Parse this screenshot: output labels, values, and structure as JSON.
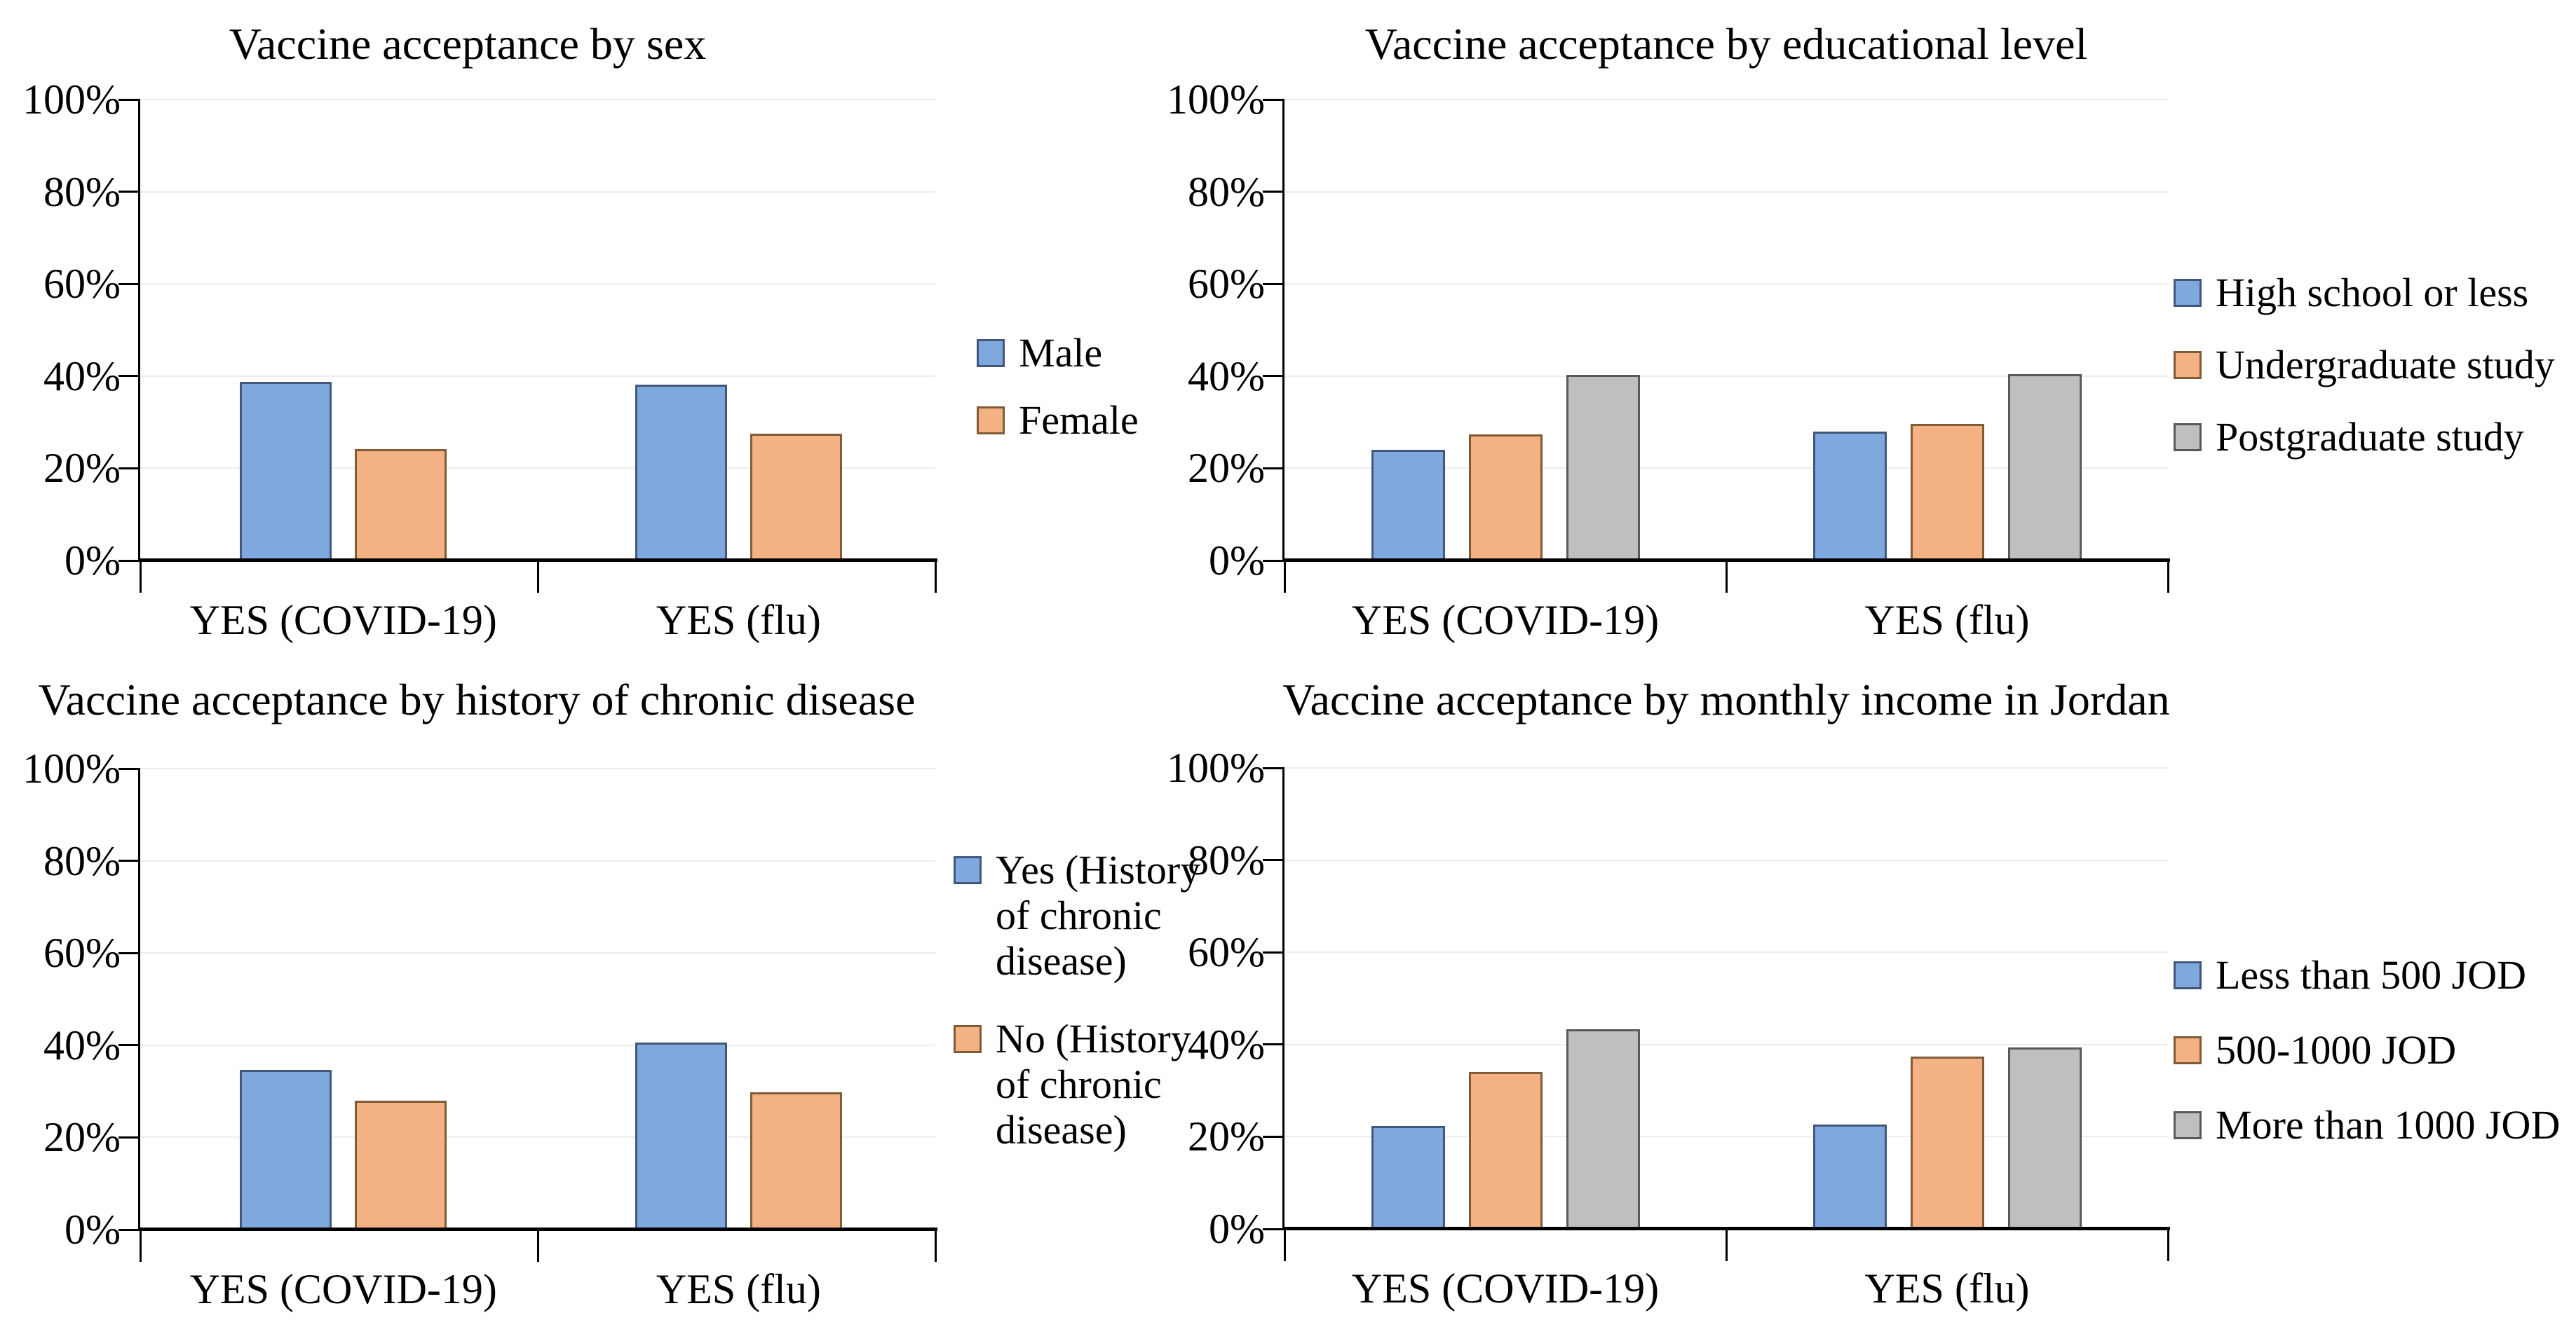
{
  "figure": {
    "background": "#ffffff",
    "text_color": "#000000"
  },
  "palette": {
    "blue": "#7FA9DE",
    "blue_border": "#41587B",
    "orange": "#F4B183",
    "orange_border": "#7F5B36",
    "gray": "#BFBFBF",
    "gray_border": "#595959",
    "axis": "#000000",
    "gridline": "#EDEDED"
  },
  "chart_data": [
    {
      "type": "bar",
      "title": "Vaccine acceptance by sex",
      "categories": [
        "YES (COVID-19)",
        "YES (flu)"
      ],
      "series": [
        {
          "name": "Male",
          "color": "blue",
          "values": [
            38.7,
            38.1
          ]
        },
        {
          "name": "Female",
          "color": "orange",
          "values": [
            24.1,
            27.5
          ]
        }
      ],
      "xlabel": "",
      "ylabel": "",
      "ylim": [
        0,
        100
      ],
      "yticks": [
        "0%",
        "20%",
        "40%",
        "60%",
        "80%",
        "100%"
      ],
      "grid": true,
      "legend_position": "right"
    },
    {
      "type": "bar",
      "title": "Vaccine acceptance by educational level",
      "categories": [
        "YES (COVID-19)",
        "YES (flu)"
      ],
      "series": [
        {
          "name": "High school or less",
          "color": "blue",
          "values": [
            24.0,
            28.0
          ]
        },
        {
          "name": "Undergraduate study",
          "color": "orange",
          "values": [
            27.3,
            29.6
          ]
        },
        {
          "name": "Postgraduate study",
          "color": "gray",
          "values": [
            40.2,
            40.5
          ]
        }
      ],
      "xlabel": "",
      "ylabel": "",
      "ylim": [
        0,
        100
      ],
      "yticks": [
        "0%",
        "20%",
        "40%",
        "60%",
        "80%",
        "100%"
      ],
      "grid": true,
      "legend_position": "right"
    },
    {
      "type": "bar",
      "title": "Vaccine acceptance by history of chronic disease",
      "categories": [
        "YES (COVID-19)",
        "YES (flu)"
      ],
      "series": [
        {
          "name": "Yes (History of chronic disease)",
          "color": "blue",
          "values": [
            34.6,
            40.6
          ]
        },
        {
          "name": "No (History of chronic disease)",
          "color": "orange",
          "values": [
            28.0,
            29.8
          ]
        }
      ],
      "xlabel": "",
      "ylabel": "",
      "ylim": [
        0,
        100
      ],
      "yticks": [
        "0%",
        "20%",
        "40%",
        "60%",
        "80%",
        "100%"
      ],
      "grid": true,
      "legend_position": "right"
    },
    {
      "type": "bar",
      "title": "Vaccine acceptance by monthly income in Jordan",
      "categories": [
        "YES (COVID-19)",
        "YES (flu)"
      ],
      "series": [
        {
          "name": "Less than 500 JOD",
          "color": "blue",
          "values": [
            22.3,
            22.7
          ]
        },
        {
          "name": "500-1000 JOD",
          "color": "orange",
          "values": [
            34.1,
            37.4
          ]
        },
        {
          "name": "More than 1000 JOD",
          "color": "gray",
          "values": [
            43.3,
            39.4
          ]
        }
      ],
      "xlabel": "",
      "ylabel": "",
      "ylim": [
        0,
        100
      ],
      "yticks": [
        "0%",
        "20%",
        "40%",
        "60%",
        "80%",
        "100%"
      ],
      "grid": true,
      "legend_position": "right"
    }
  ]
}
